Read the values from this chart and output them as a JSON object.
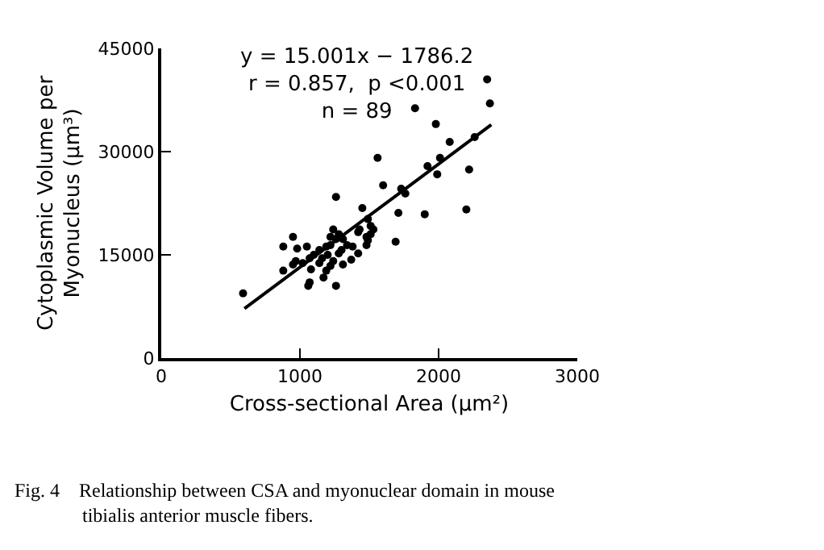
{
  "chart_data": {
    "type": "scatter",
    "xlabel": "Cross-sectional Area (μm²)",
    "ylabel": "Cytoplasmic Volume per\nMyonucleus (μm³)",
    "xlim": [
      0,
      3000
    ],
    "xticks": [
      0,
      1000,
      2000,
      3000
    ],
    "ylim": [
      0,
      45000
    ],
    "yticks": [
      0,
      15000,
      30000,
      45000
    ],
    "marker": "circle",
    "series": [
      {
        "color": "#000000",
        "x": [
          2350,
          2370,
          1980,
          2080,
          2260,
          2010,
          1920,
          1990,
          2220,
          1900,
          2200,
          1830,
          1560,
          590,
          1260,
          1600,
          1730,
          1760,
          1450,
          1710,
          950,
          880,
          980,
          1050,
          1690,
          1510,
          1490,
          1530,
          1480,
          1490,
          1420,
          1280,
          1240,
          1310,
          1380,
          1420,
          1370,
          1310,
          1260,
          1170,
          1070,
          1060,
          970,
          950,
          880,
          1080,
          1140,
          1100,
          1140,
          1190,
          1220,
          1200,
          1240,
          1280,
          1160,
          1070,
          1020,
          1220,
          1190,
          1300,
          1340,
          1260,
          1220,
          1480,
          1510,
          1430
        ],
        "values": [
          40500,
          37000,
          34000,
          31400,
          32100,
          29100,
          27900,
          26700,
          27400,
          20900,
          21600,
          36300,
          29100,
          9400,
          23400,
          25100,
          24600,
          23900,
          21800,
          21100,
          17600,
          16200,
          15900,
          16200,
          16900,
          19200,
          20200,
          18700,
          17600,
          17100,
          18300,
          18000,
          18700,
          17300,
          16200,
          15200,
          14300,
          13600,
          10500,
          11700,
          11000,
          10500,
          14100,
          13600,
          12700,
          12900,
          13800,
          15000,
          15700,
          16200,
          16400,
          15000,
          14100,
          15200,
          14500,
          14500,
          13800,
          13400,
          12700,
          15700,
          16400,
          17300,
          17600,
          16400,
          18000,
          18700
        ]
      },
      {
        "type": "line",
        "color": "#000000",
        "x": [
          600,
          2380
        ],
        "values": [
          7200,
          33900
        ],
        "marker": "none",
        "line_style": "solid"
      }
    ],
    "annotations": [
      "y = 15.001x − 1786.2\nr = 0.857,  p <0.001\nn = 89",
      "Fig. 4    Relationship between CSA and myonuclear domain in mouse\n              tibialis anterior muscle fibers."
    ]
  }
}
